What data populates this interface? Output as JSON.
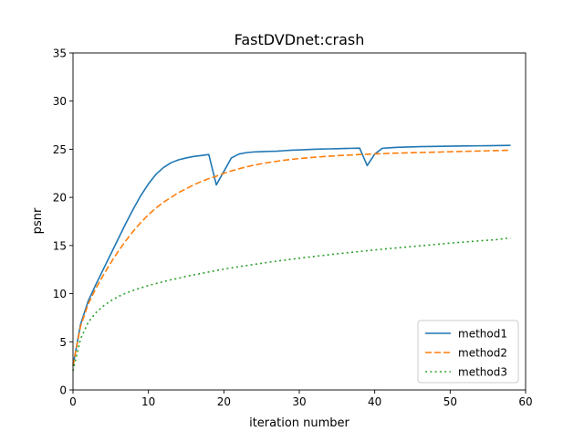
{
  "chart_data": {
    "type": "line",
    "title": "FastDVDnet:crash",
    "xlabel": "iteration number",
    "ylabel": "psnr",
    "xlim": [
      0,
      60
    ],
    "ylim": [
      0,
      35
    ],
    "xticks": [
      0,
      10,
      20,
      30,
      40,
      50,
      60
    ],
    "yticks": [
      0,
      5,
      10,
      15,
      20,
      25,
      30,
      35
    ],
    "grid": false,
    "legend_position": "lower right",
    "series": [
      {
        "name": "method1",
        "color": "#1f77b4",
        "dash": "solid",
        "x": [
          0,
          1,
          2,
          3,
          4,
          5,
          6,
          7,
          8,
          9,
          10,
          11,
          12,
          13,
          14,
          15,
          16,
          17,
          18,
          19,
          20,
          21,
          22,
          23,
          24,
          25,
          26,
          27,
          28,
          29,
          30,
          31,
          32,
          33,
          34,
          35,
          36,
          37,
          38,
          39,
          40,
          41,
          42,
          43,
          44,
          45,
          46,
          47,
          48,
          49,
          50,
          51,
          52,
          53,
          54,
          55,
          56,
          57,
          58
        ],
        "y": [
          2.5,
          6.8,
          9.2,
          10.9,
          12.5,
          14.1,
          15.7,
          17.3,
          18.8,
          20.2,
          21.4,
          22.4,
          23.1,
          23.6,
          23.9,
          24.1,
          24.25,
          24.35,
          24.45,
          21.3,
          22.7,
          24.1,
          24.5,
          24.65,
          24.72,
          24.75,
          24.78,
          24.8,
          24.85,
          24.9,
          24.93,
          24.96,
          25.0,
          25.02,
          25.04,
          25.06,
          25.08,
          25.1,
          25.12,
          23.3,
          24.5,
          25.1,
          25.15,
          25.2,
          25.22,
          25.25,
          25.27,
          25.28,
          25.3,
          25.31,
          25.32,
          25.33,
          25.34,
          25.35,
          25.36,
          25.37,
          25.38,
          25.39,
          25.4
        ]
      },
      {
        "name": "method2",
        "color": "#ff7f0e",
        "dash": "dashed",
        "x": [
          0,
          1,
          2,
          3,
          4,
          5,
          6,
          7,
          8,
          9,
          10,
          11,
          12,
          13,
          14,
          15,
          16,
          17,
          18,
          19,
          20,
          21,
          22,
          23,
          24,
          25,
          26,
          27,
          28,
          29,
          30,
          31,
          32,
          33,
          34,
          35,
          36,
          37,
          38,
          39,
          40,
          41,
          42,
          43,
          44,
          45,
          46,
          47,
          48,
          49,
          50,
          51,
          52,
          53,
          54,
          55,
          56,
          57,
          58
        ],
        "y": [
          2.5,
          6.6,
          8.9,
          10.5,
          11.9,
          13.2,
          14.4,
          15.5,
          16.5,
          17.4,
          18.2,
          18.9,
          19.5,
          20.0,
          20.5,
          20.9,
          21.3,
          21.65,
          21.95,
          22.2,
          22.5,
          22.75,
          22.97,
          23.17,
          23.35,
          23.5,
          23.63,
          23.75,
          23.86,
          23.95,
          24.03,
          24.1,
          24.17,
          24.23,
          24.28,
          24.33,
          24.37,
          24.41,
          24.45,
          24.48,
          24.51,
          24.54,
          24.57,
          24.6,
          24.62,
          24.64,
          24.66,
          24.68,
          24.7,
          24.72,
          24.74,
          24.76,
          24.78,
          24.8,
          24.82,
          24.84,
          24.86,
          24.88,
          24.9
        ]
      },
      {
        "name": "method3",
        "color": "#2ca02c",
        "dash": "dotted",
        "x": [
          0,
          1,
          2,
          3,
          4,
          5,
          6,
          7,
          8,
          9,
          10,
          11,
          12,
          13,
          14,
          15,
          16,
          17,
          18,
          19,
          20,
          21,
          22,
          23,
          24,
          25,
          26,
          27,
          28,
          29,
          30,
          31,
          32,
          33,
          34,
          35,
          36,
          37,
          38,
          39,
          40,
          41,
          42,
          43,
          44,
          45,
          46,
          47,
          48,
          49,
          50,
          51,
          52,
          53,
          54,
          55,
          56,
          57,
          58
        ],
        "y": [
          2.0,
          5.3,
          7.0,
          8.0,
          8.7,
          9.25,
          9.7,
          10.05,
          10.35,
          10.6,
          10.85,
          11.05,
          11.25,
          11.45,
          11.6,
          11.8,
          11.95,
          12.1,
          12.25,
          12.4,
          12.55,
          12.68,
          12.8,
          12.92,
          13.04,
          13.15,
          13.27,
          13.38,
          13.48,
          13.58,
          13.68,
          13.78,
          13.87,
          13.96,
          14.05,
          14.14,
          14.22,
          14.3,
          14.38,
          14.46,
          14.54,
          14.62,
          14.69,
          14.76,
          14.83,
          14.9,
          14.97,
          15.04,
          15.11,
          15.18,
          15.25,
          15.31,
          15.37,
          15.43,
          15.49,
          15.55,
          15.6,
          15.7,
          15.8
        ]
      }
    ]
  }
}
